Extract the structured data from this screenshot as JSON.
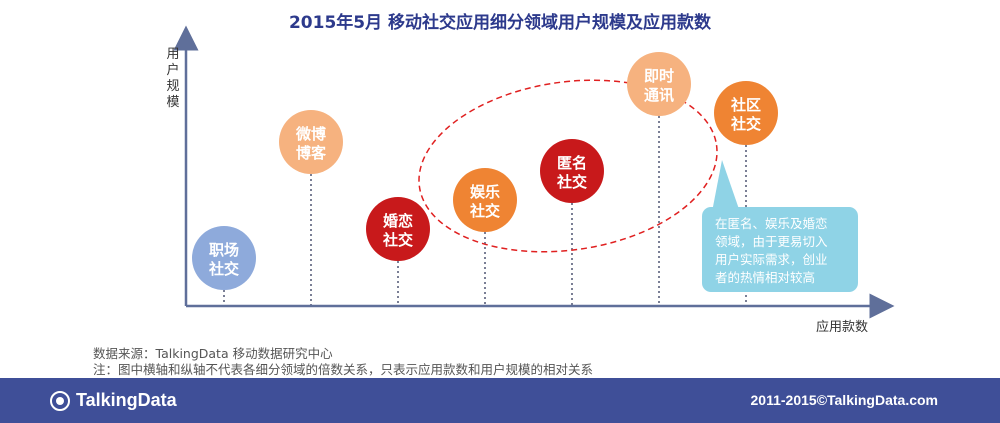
{
  "title": "2015年5月 移动社交应用细分领域用户规模及应用款数",
  "chart_data": {
    "type": "scatter",
    "ylabel": "用户规模",
    "xlabel": "应用款数",
    "points": [
      {
        "line1": "职场",
        "line2": "社交",
        "color": "#8eaadb",
        "x_rank": 1,
        "y_rank": 1
      },
      {
        "line1": "微博",
        "line2": "博客",
        "color": "#f6b27f",
        "x_rank": 2,
        "y_rank": 5
      },
      {
        "line1": "婚恋",
        "line2": "社交",
        "color": "#c8191b",
        "x_rank": 3,
        "y_rank": 2
      },
      {
        "line1": "娱乐",
        "line2": "社交",
        "color": "#ef8433",
        "x_rank": 4,
        "y_rank": 3
      },
      {
        "line1": "匿名",
        "line2": "社交",
        "color": "#c8191b",
        "x_rank": 5,
        "y_rank": 4
      },
      {
        "line1": "即时",
        "line2": "通讯",
        "color": "#f6b27f",
        "x_rank": 6,
        "y_rank": 7
      },
      {
        "line1": "社区",
        "line2": "社交",
        "color": "#ef8433",
        "x_rank": 7,
        "y_rank": 6
      }
    ],
    "callout": {
      "lines": [
        "在匿名、娱乐及婚恋",
        "领域，由于更易切入",
        "用户实际需求，创业",
        "者的热情相对较高"
      ],
      "color": "#8fd3e6"
    },
    "highlight_ellipse": {
      "color": "#e02020"
    }
  },
  "source_line1": "数据来源：TalkingData 移动数据研究中心",
  "source_line2": "注：图中横轴和纵轴不代表各细分领域的倍数关系，只表示应用款数和用户规模的相对关系",
  "footer": {
    "logo_text": "TalkingData",
    "copyright": "2011-2015©TalkingData.com"
  }
}
